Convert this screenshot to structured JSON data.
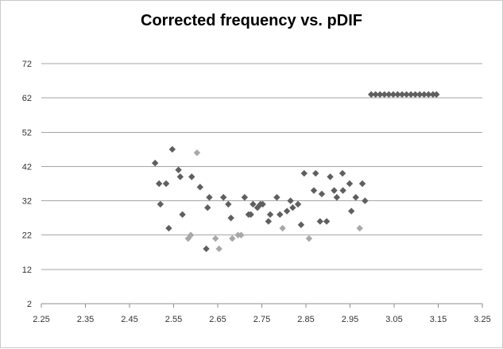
{
  "chart_data": {
    "type": "scatter",
    "title": "Corrected frequency vs. pDIF",
    "xlabel": "",
    "ylabel": "",
    "xlim": [
      2.25,
      3.25
    ],
    "ylim": [
      2,
      72
    ],
    "x_ticks": [
      "2.25",
      "2.35",
      "2.45",
      "2.55",
      "2.65",
      "2.75",
      "2.85",
      "2.95",
      "3.05",
      "3.15",
      "3.25"
    ],
    "y_ticks": [
      "2",
      "12",
      "22",
      "32",
      "42",
      "52",
      "62",
      "72"
    ],
    "grid": "horizontal",
    "colors": {
      "dark": "#5f5f5f",
      "light": "#a8a8a8",
      "grid": "#a6a6a6"
    },
    "series": [
      {
        "color": "#5f5f5f",
        "points": [
          [
            2.508,
            43
          ],
          [
            2.517,
            37
          ],
          [
            2.52,
            31
          ],
          [
            2.533,
            37
          ],
          [
            2.539,
            24
          ],
          [
            2.547,
            47
          ],
          [
            2.561,
            41
          ],
          [
            2.565,
            39
          ],
          [
            2.57,
            28
          ],
          [
            2.591,
            39
          ],
          [
            2.61,
            36
          ],
          [
            2.624,
            18
          ],
          [
            2.627,
            30
          ],
          [
            2.631,
            33
          ],
          [
            2.663,
            33
          ],
          [
            2.674,
            31
          ],
          [
            2.68,
            27
          ],
          [
            2.711,
            33
          ],
          [
            2.72,
            28
          ],
          [
            2.725,
            28
          ],
          [
            2.73,
            31
          ],
          [
            2.74,
            30
          ],
          [
            2.747,
            31
          ],
          [
            2.752,
            31
          ],
          [
            2.765,
            26
          ],
          [
            2.769,
            28
          ],
          [
            2.784,
            33
          ],
          [
            2.791,
            28
          ],
          [
            2.807,
            29
          ],
          [
            2.815,
            32
          ],
          [
            2.82,
            30
          ],
          [
            2.832,
            31
          ],
          [
            2.839,
            25
          ],
          [
            2.846,
            40
          ],
          [
            2.868,
            35
          ],
          [
            2.872,
            40
          ],
          [
            2.882,
            26
          ],
          [
            2.886,
            34
          ],
          [
            2.897,
            26
          ],
          [
            2.905,
            39
          ],
          [
            2.914,
            35
          ],
          [
            2.92,
            33
          ],
          [
            2.933,
            40
          ],
          [
            2.934,
            35
          ],
          [
            2.949,
            37
          ],
          [
            2.953,
            29
          ],
          [
            2.963,
            33
          ],
          [
            2.978,
            37
          ],
          [
            2.984,
            32
          ],
          [
            2.998,
            63
          ],
          [
            3.008,
            63
          ],
          [
            3.018,
            63
          ],
          [
            3.028,
            63
          ],
          [
            3.038,
            63
          ],
          [
            3.048,
            63
          ],
          [
            3.058,
            63
          ],
          [
            3.068,
            63
          ],
          [
            3.078,
            63
          ],
          [
            3.088,
            63
          ],
          [
            3.098,
            63
          ],
          [
            3.108,
            63
          ],
          [
            3.118,
            63
          ],
          [
            3.128,
            63
          ],
          [
            3.138,
            63
          ],
          [
            3.146,
            63
          ]
        ]
      },
      {
        "color": "#a8a8a8",
        "points": [
          [
            2.583,
            21
          ],
          [
            2.589,
            22
          ],
          [
            2.603,
            46
          ],
          [
            2.645,
            21
          ],
          [
            2.653,
            18
          ],
          [
            2.683,
            21
          ],
          [
            2.696,
            22
          ],
          [
            2.703,
            22
          ],
          [
            2.797,
            24
          ],
          [
            2.857,
            21
          ],
          [
            2.972,
            24
          ]
        ]
      }
    ]
  }
}
